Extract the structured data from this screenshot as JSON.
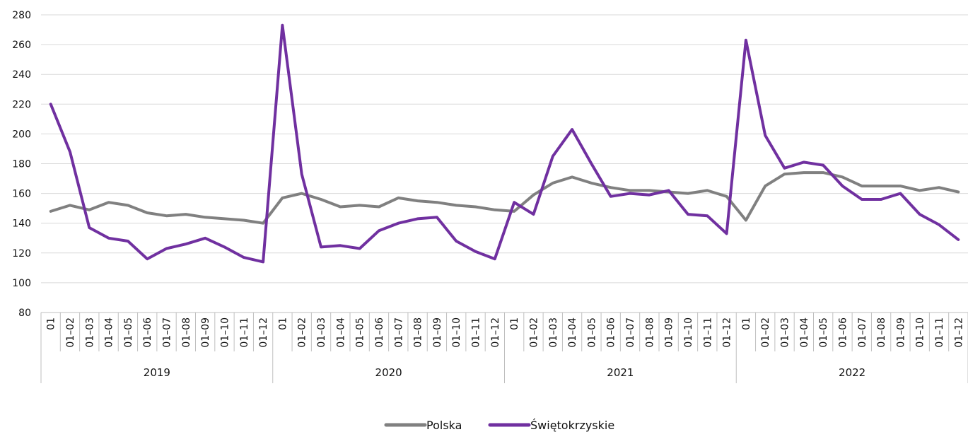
{
  "chart_data": {
    "type": "line",
    "ylim": [
      80,
      280
    ],
    "yticks": [
      80,
      100,
      120,
      140,
      160,
      180,
      200,
      220,
      240,
      260,
      280
    ],
    "grid": true,
    "legend_position": "bottom-center",
    "years": [
      "2019",
      "2020",
      "2021",
      "2022"
    ],
    "x_month_labels": [
      "01",
      "01–02",
      "01–03",
      "01–04",
      "01–05",
      "01–06",
      "01–07",
      "01–08",
      "01–09",
      "01–10",
      "01–11",
      "01–12"
    ],
    "series": [
      {
        "name": "Polska",
        "color": "#808080",
        "values": [
          148,
          152,
          149,
          154,
          152,
          147,
          145,
          146,
          144,
          143,
          142,
          140,
          157,
          160,
          156,
          151,
          152,
          151,
          157,
          155,
          154,
          152,
          151,
          149,
          148,
          159,
          167,
          171,
          167,
          164,
          162,
          162,
          161,
          160,
          162,
          158,
          142,
          165,
          173,
          174,
          174,
          171,
          165,
          165,
          165,
          162,
          164,
          161
        ]
      },
      {
        "name": "Świętokrzyskie",
        "color": "#7030a0",
        "values": [
          220,
          188,
          137,
          130,
          128,
          116,
          123,
          126,
          130,
          124,
          117,
          114,
          273,
          173,
          124,
          125,
          123,
          135,
          140,
          143,
          144,
          128,
          121,
          116,
          154,
          146,
          185,
          203,
          180,
          158,
          160,
          159,
          162,
          146,
          145,
          133,
          263,
          199,
          177,
          181,
          179,
          165,
          156,
          156,
          160,
          146,
          139,
          129
        ]
      }
    ]
  }
}
